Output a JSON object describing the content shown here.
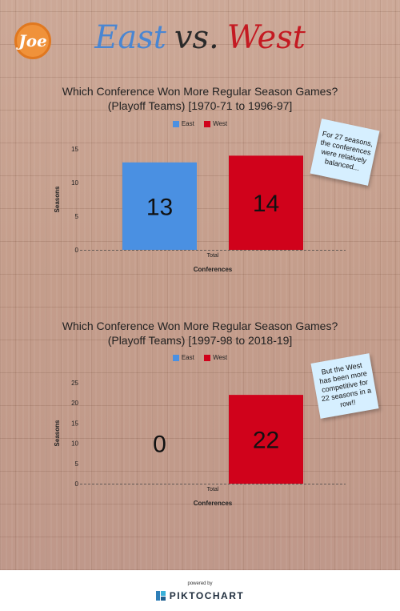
{
  "logo": {
    "text": "Joe",
    "color": "#f0923a"
  },
  "headline": {
    "east": "East",
    "vs": "vs.",
    "west": "West"
  },
  "colors": {
    "east": "#4a90e2",
    "west": "#d0021b"
  },
  "chart_data": [
    {
      "type": "bar",
      "title": "Which Conference Won More Regular Season Games?",
      "subtitle": "(Playoff Teams) [1970-71 to 1996-97]",
      "categories": [
        "Total"
      ],
      "series": [
        {
          "name": "East",
          "values": [
            13
          ]
        },
        {
          "name": "West",
          "values": [
            14
          ]
        }
      ],
      "xlabel": "Conferences",
      "ylabel": "Seasons",
      "ylim": [
        0,
        15
      ],
      "yticks": [
        0,
        5,
        10,
        15
      ],
      "legend": "top-center",
      "data_labels": true
    },
    {
      "type": "bar",
      "title": "Which Conference Won More Regular Season Games?",
      "subtitle": "(Playoff Teams) [1997-98 to 2018-19]",
      "categories": [
        "Total"
      ],
      "series": [
        {
          "name": "East",
          "values": [
            0
          ]
        },
        {
          "name": "West",
          "values": [
            22
          ]
        }
      ],
      "xlabel": "Conferences",
      "ylabel": "Seasons",
      "ylim": [
        0,
        25
      ],
      "yticks": [
        0,
        5,
        10,
        15,
        20,
        25
      ],
      "legend": "top-center",
      "data_labels": true
    }
  ],
  "notes": [
    "For 27 seasons, the conferences were relatively balanced...",
    "But the West has been more competitive for 22 seasons in a row!!"
  ],
  "footer": {
    "powered_by": "powered by",
    "brand": "PIKTOCHART"
  }
}
